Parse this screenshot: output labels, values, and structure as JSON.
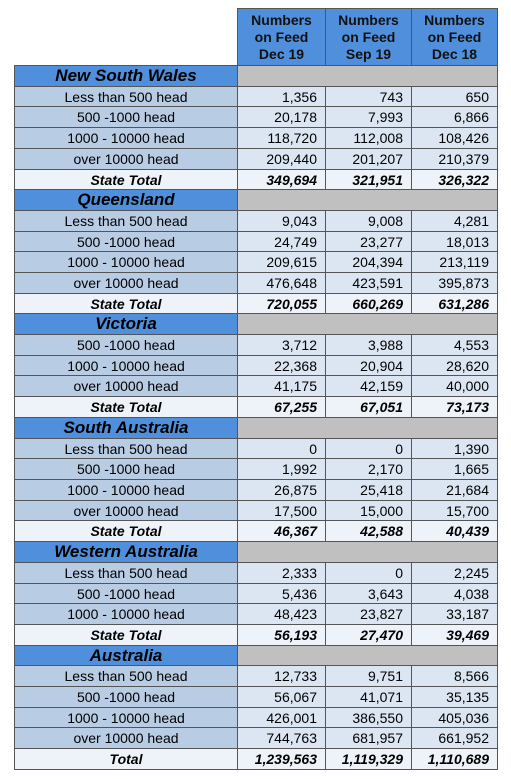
{
  "header": {
    "columns": [
      "Numbers\non Feed\nDec 19",
      "Numbers\non Feed\nSep 19",
      "Numbers\non Feed\nDec 18"
    ]
  },
  "sections": [
    {
      "name": "New South Wales",
      "rows": [
        {
          "label": "Less than 500 head",
          "values": [
            "1,356",
            "743",
            "650"
          ]
        },
        {
          "label": "500 -1000 head",
          "values": [
            "20,178",
            "7,993",
            "6,866"
          ]
        },
        {
          "label": "1000 - 10000 head",
          "values": [
            "118,720",
            "112,008",
            "108,426"
          ]
        },
        {
          "label": "over 10000 head",
          "values": [
            "209,440",
            "201,207",
            "210,379"
          ]
        }
      ],
      "total": {
        "label": "State Total",
        "values": [
          "349,694",
          "321,951",
          "326,322"
        ]
      }
    },
    {
      "name": "Queensland",
      "rows": [
        {
          "label": "Less than 500 head",
          "values": [
            "9,043",
            "9,008",
            "4,281"
          ]
        },
        {
          "label": "500 -1000 head",
          "values": [
            "24,749",
            "23,277",
            "18,013"
          ]
        },
        {
          "label": "1000 - 10000 head",
          "values": [
            "209,615",
            "204,394",
            "213,119"
          ]
        },
        {
          "label": "over 10000 head",
          "values": [
            "476,648",
            "423,591",
            "395,873"
          ]
        }
      ],
      "total": {
        "label": "State Total",
        "values": [
          "720,055",
          "660,269",
          "631,286"
        ]
      }
    },
    {
      "name": "Victoria",
      "rows": [
        {
          "label": "500 -1000 head",
          "values": [
            "3,712",
            "3,988",
            "4,553"
          ]
        },
        {
          "label": "1000 - 10000 head",
          "values": [
            "22,368",
            "20,904",
            "28,620"
          ]
        },
        {
          "label": "over 10000 head",
          "values": [
            "41,175",
            "42,159",
            "40,000"
          ]
        }
      ],
      "total": {
        "label": "State Total",
        "values": [
          "67,255",
          "67,051",
          "73,173"
        ]
      }
    },
    {
      "name": "South Australia",
      "rows": [
        {
          "label": "Less than 500 head",
          "values": [
            "0",
            "0",
            "1,390"
          ]
        },
        {
          "label": "500 -1000 head",
          "values": [
            "1,992",
            "2,170",
            "1,665"
          ]
        },
        {
          "label": "1000 - 10000 head",
          "values": [
            "26,875",
            "25,418",
            "21,684"
          ]
        },
        {
          "label": "over 10000 head",
          "values": [
            "17,500",
            "15,000",
            "15,700"
          ]
        }
      ],
      "total": {
        "label": "State Total",
        "values": [
          "46,367",
          "42,588",
          "40,439"
        ]
      }
    },
    {
      "name": "Western Australia",
      "rows": [
        {
          "label": "Less than 500 head",
          "values": [
            "2,333",
            "0",
            "2,245"
          ]
        },
        {
          "label": "500 -1000 head",
          "values": [
            "5,436",
            "3,643",
            "4,038"
          ]
        },
        {
          "label": "1000 - 10000 head",
          "values": [
            "48,423",
            "23,827",
            "33,187"
          ]
        }
      ],
      "total": {
        "label": "State Total",
        "values": [
          "56,193",
          "27,470",
          "39,469"
        ]
      }
    },
    {
      "name": "Australia",
      "rows": [
        {
          "label": "Less than 500 head",
          "values": [
            "12,733",
            "9,751",
            "8,566"
          ]
        },
        {
          "label": "500 -1000 head",
          "values": [
            "56,067",
            "41,071",
            "35,135"
          ]
        },
        {
          "label": "1000 - 10000 head",
          "values": [
            "426,001",
            "386,550",
            "405,036"
          ]
        },
        {
          "label": "over 10000 head",
          "values": [
            "744,763",
            "681,957",
            "661,952"
          ]
        }
      ],
      "total": {
        "label": "Total",
        "values": [
          "1,239,563",
          "1,119,329",
          "1,110,689"
        ]
      }
    }
  ]
}
